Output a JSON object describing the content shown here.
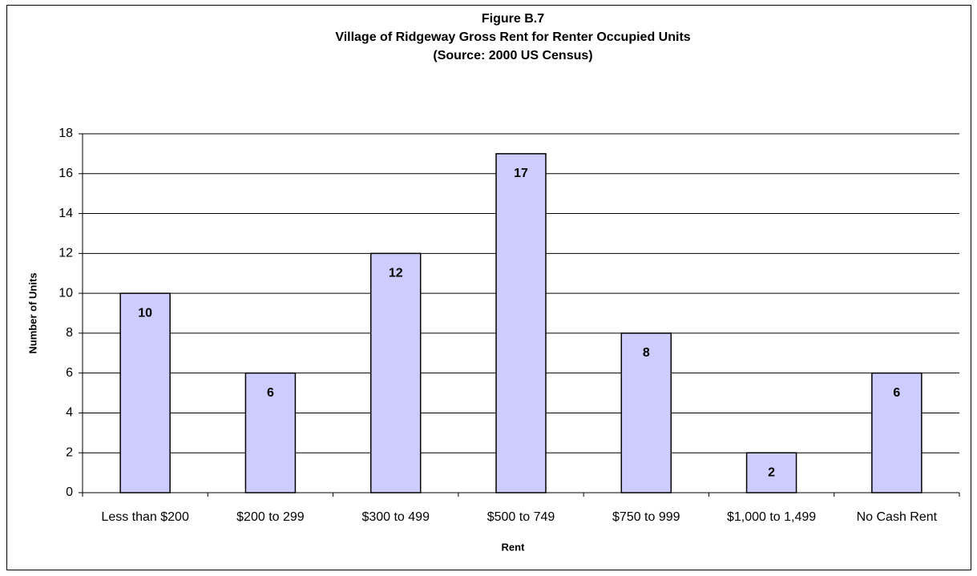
{
  "chart_data": {
    "type": "bar",
    "title": [
      "Figure B.7",
      "Village of Ridgeway Gross Rent for Renter Occupied Units",
      "(Source:  2000 US Census)"
    ],
    "xlabel": "Rent",
    "ylabel": "Number of Units",
    "categories": [
      "Less than $200",
      "$200 to 299",
      "$300 to 499",
      "$500 to 749",
      "$750 to 999",
      "$1,000 to 1,499",
      "No Cash Rent"
    ],
    "values": [
      10,
      6,
      12,
      17,
      8,
      2,
      6
    ],
    "color": "#ccccff",
    "ylim": [
      0,
      18
    ],
    "yticks": [
      0,
      2,
      4,
      6,
      8,
      10,
      12,
      14,
      16,
      18
    ],
    "grid": true
  }
}
